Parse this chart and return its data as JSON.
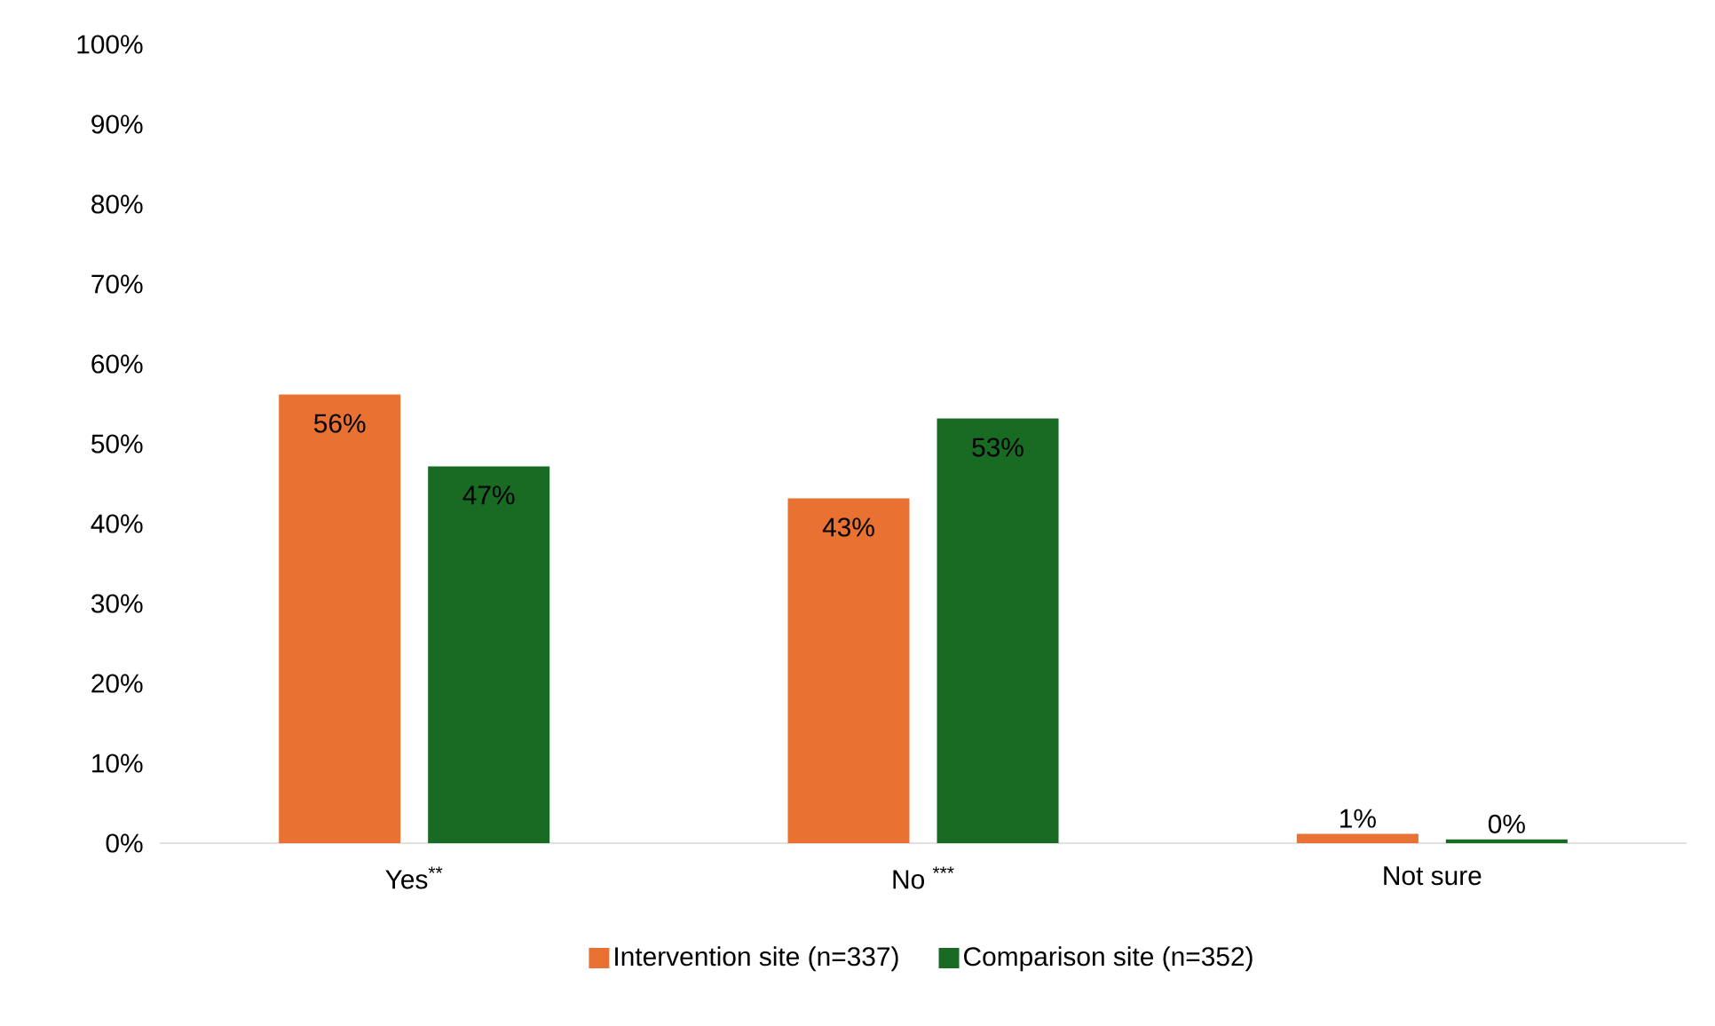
{
  "chart_data": {
    "type": "bar",
    "categories": [
      "Yes$^{**}$",
      "No $^{***}$",
      "Not sure"
    ],
    "series": [
      {
        "name": "Intervention site (n=337)",
        "color": "#e97132",
        "values": [
          56,
          43,
          1
        ],
        "value_labels": [
          "56%",
          "43%",
          "1%"
        ]
      },
      {
        "name": "Comparison site (n=352)",
        "color": "#196b24",
        "values": [
          47,
          53,
          0.3
        ],
        "value_labels": [
          "47%",
          "53%",
          "0%"
        ]
      }
    ],
    "ylim": [
      0,
      100
    ],
    "yticks": [
      {
        "value": 0,
        "label": "0%"
      },
      {
        "value": 10,
        "label": "10%"
      },
      {
        "value": 20,
        "label": "20%"
      },
      {
        "value": 30,
        "label": "30%"
      },
      {
        "value": 40,
        "label": "40%"
      },
      {
        "value": 50,
        "label": "50%"
      },
      {
        "value": 60,
        "label": "60%"
      },
      {
        "value": 70,
        "label": "70%"
      },
      {
        "value": 80,
        "label": "80%"
      },
      {
        "value": 90,
        "label": "90%"
      },
      {
        "value": 100,
        "label": "100%"
      }
    ],
    "grid": false,
    "legend": "bottom"
  }
}
